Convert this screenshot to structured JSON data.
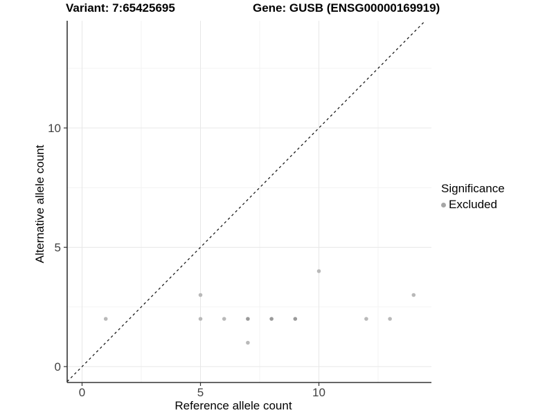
{
  "figure": {
    "variant_title": "Variant: 7:65425695",
    "gene_title": "Gene: GUSB (ENSG00000169919)"
  },
  "axes": {
    "x_title": "Reference allele count",
    "y_title": "Alternative allele count"
  },
  "legend": {
    "title": "Significance",
    "items": [
      {
        "label": "Excluded",
        "marker_color": "#a6a6a6"
      }
    ]
  },
  "chart_data": {
    "type": "scatter",
    "title": "Variant: 7:65425695 | Gene: GUSB (ENSG00000169919)",
    "xlabel": "Reference allele count",
    "ylabel": "Alternative allele count",
    "xlim": [
      -0.63,
      14.75
    ],
    "ylim": [
      -0.67,
      14.49
    ],
    "x_major_ticks": [
      0,
      5,
      10
    ],
    "y_major_ticks": [
      0,
      5,
      10
    ],
    "x_minor_gridlines": [
      2.5,
      7.5,
      12.5
    ],
    "y_minor_gridlines": [
      2.5,
      7.5,
      12.5
    ],
    "grid": true,
    "legend_position": "right",
    "series": [
      {
        "name": "Excluded",
        "points": [
          {
            "x": 1,
            "y": 2,
            "overplotted": false
          },
          {
            "x": 5,
            "y": 3,
            "overplotted": false
          },
          {
            "x": 5,
            "y": 2,
            "overplotted": false
          },
          {
            "x": 6,
            "y": 2,
            "overplotted": false
          },
          {
            "x": 7,
            "y": 2,
            "overplotted": true
          },
          {
            "x": 7,
            "y": 1,
            "overplotted": false
          },
          {
            "x": 8,
            "y": 2,
            "overplotted": true
          },
          {
            "x": 9,
            "y": 2,
            "overplotted": true
          },
          {
            "x": 10,
            "y": 4,
            "overplotted": false
          },
          {
            "x": 12,
            "y": 2,
            "overplotted": false
          },
          {
            "x": 13,
            "y": 2,
            "overplotted": false
          },
          {
            "x": 14,
            "y": 3,
            "overplotted": false
          }
        ]
      }
    ],
    "reference_line": {
      "type": "identity y=x",
      "style": "dashed",
      "color": "#1a1a1a"
    },
    "colors": {
      "point": "#b9b9b9",
      "point_overplotted": "#9a9a9a",
      "grid_major": "#e7e7e7",
      "grid_minor": "#f3f3f3",
      "axis_line": "#333333",
      "tick_label": "#404040",
      "background": "#ffffff"
    }
  }
}
